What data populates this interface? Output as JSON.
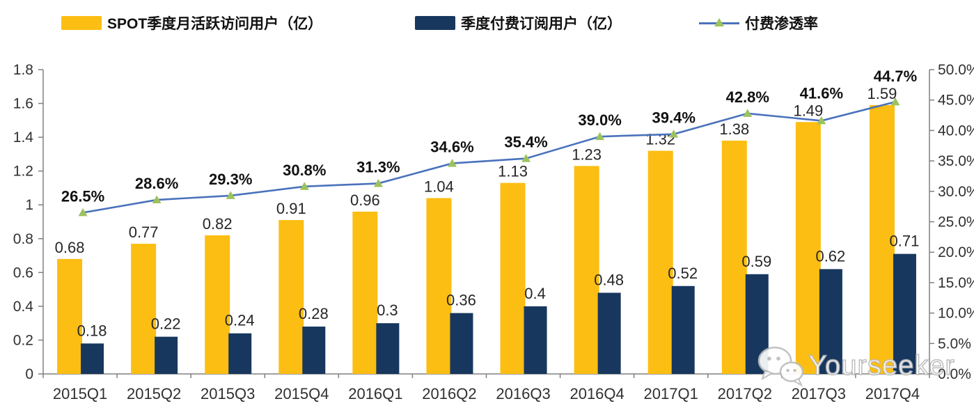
{
  "chart_data": {
    "type": "bar+line",
    "title": "",
    "categories": [
      "2015Q1",
      "2015Q2",
      "2015Q3",
      "2015Q4",
      "2016Q1",
      "2016Q2",
      "2016Q3",
      "2016Q4",
      "2017Q1",
      "2017Q2",
      "2017Q3",
      "2017Q4"
    ],
    "series": [
      {
        "name": "SPOT季度月活跃访问用户（亿）",
        "type": "bar",
        "axis": "left",
        "color": "#FCBE12",
        "values": [
          0.68,
          0.77,
          0.82,
          0.91,
          0.96,
          1.04,
          1.13,
          1.23,
          1.32,
          1.38,
          1.49,
          1.59
        ],
        "labels": [
          "0.68",
          "0.77",
          "0.82",
          "0.91",
          "0.96",
          "1.04",
          "1.13",
          "1.23",
          "1.32",
          "1.38",
          "1.49",
          "1.59"
        ]
      },
      {
        "name": "季度付费订阅用户（亿）",
        "type": "bar",
        "axis": "left",
        "color": "#17375E",
        "values": [
          0.18,
          0.22,
          0.24,
          0.28,
          0.3,
          0.36,
          0.4,
          0.48,
          0.52,
          0.59,
          0.62,
          0.71
        ],
        "labels": [
          "0.18",
          "0.22",
          "0.24",
          "0.28",
          "0.3",
          "0.36",
          "0.4",
          "0.48",
          "0.52",
          "0.59",
          "0.62",
          "0.71"
        ]
      },
      {
        "name": "付费渗透率",
        "type": "line",
        "axis": "right",
        "color": "#4A72BC",
        "marker": "triangle",
        "marker_color": "#9CC25E",
        "values": [
          26.5,
          28.6,
          29.3,
          30.8,
          31.3,
          34.6,
          35.4,
          39.0,
          39.4,
          42.8,
          41.6,
          44.7
        ],
        "labels": [
          "26.5%",
          "28.6%",
          "29.3%",
          "30.8%",
          "31.3%",
          "34.6%",
          "35.4%",
          "39.0%",
          "39.4%",
          "42.8%",
          "41.6%",
          "44.7%"
        ]
      }
    ],
    "left_axis": {
      "min": 0,
      "max": 1.8,
      "ticks": [
        "0",
        "0.2",
        "0.4",
        "0.6",
        "0.8",
        "1",
        "1.2",
        "1.4",
        "1.6",
        "1.8"
      ]
    },
    "right_axis": {
      "min": 0,
      "max": 50,
      "ticks": [
        "0.0%",
        "5.0%",
        "10.0%",
        "15.0%",
        "20.0%",
        "25.0%",
        "30.0%",
        "35.0%",
        "40.0%",
        "45.0%",
        "50.0%"
      ]
    },
    "grid": false,
    "legend_position": "top",
    "axis_color": "#808080"
  },
  "watermark": {
    "text": "Yourseeker"
  }
}
